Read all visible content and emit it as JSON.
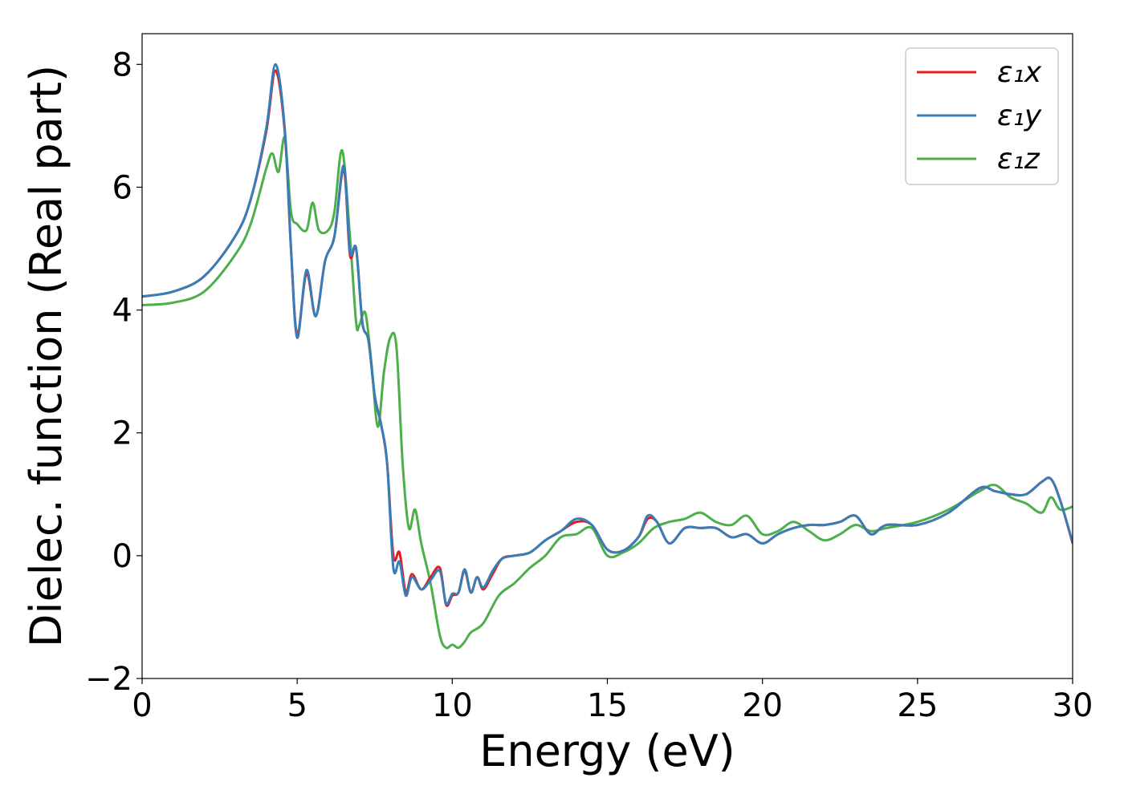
{
  "chart_data": {
    "type": "line",
    "xlabel": "Energy (eV)",
    "ylabel": "Dielec. function (Real part)",
    "xlim": [
      0,
      30
    ],
    "ylim": [
      -2,
      8.5
    ],
    "xticks": [
      0,
      5,
      10,
      15,
      20,
      25,
      30
    ],
    "xtick_labels": [
      "0",
      "5",
      "10",
      "15",
      "20",
      "25",
      "30"
    ],
    "yticks": [
      -2,
      0,
      2,
      4,
      6,
      8
    ],
    "ytick_labels": [
      "−2",
      "0",
      "2",
      "4",
      "6",
      "8"
    ],
    "grid": false,
    "legend_position": "top-right",
    "series": [
      {
        "name": "ε₁x",
        "color": "#e41a1c",
        "x": [
          0,
          1,
          2,
          3,
          3.5,
          4,
          4.3,
          4.6,
          4.8,
          5.0,
          5.3,
          5.6,
          5.9,
          6.2,
          6.5,
          6.7,
          6.9,
          7.1,
          7.3,
          7.5,
          7.7,
          7.9,
          8.1,
          8.3,
          8.5,
          8.7,
          9.0,
          9.3,
          9.6,
          9.8,
          10.0,
          10.2,
          10.4,
          10.6,
          10.8,
          11.0,
          11.3,
          11.6,
          12.0,
          12.5,
          13.0,
          13.5,
          14.0,
          14.5,
          15.0,
          15.5,
          16.0,
          16.3,
          16.6,
          17.0,
          17.5,
          18.0,
          18.5,
          19.0,
          19.5,
          20.0,
          20.5,
          21.0,
          21.5,
          22.0,
          22.5,
          23.0,
          23.5,
          24.0,
          25.0,
          26.0,
          27.0,
          27.5,
          28.0,
          28.5,
          29.0,
          29.3,
          29.6,
          30.0
        ],
        "values": [
          4.22,
          4.3,
          4.55,
          5.2,
          5.8,
          6.9,
          7.9,
          6.9,
          5.0,
          3.6,
          4.6,
          3.9,
          4.8,
          5.2,
          6.3,
          4.9,
          5.0,
          3.8,
          3.5,
          2.6,
          2.15,
          1.5,
          0.0,
          0.05,
          -0.6,
          -0.3,
          -0.55,
          -0.35,
          -0.2,
          -0.8,
          -0.65,
          -0.6,
          -0.25,
          -0.6,
          -0.35,
          -0.55,
          -0.3,
          -0.05,
          0.0,
          0.05,
          0.25,
          0.4,
          0.55,
          0.5,
          0.1,
          0.08,
          0.3,
          0.6,
          0.55,
          0.2,
          0.45,
          0.45,
          0.45,
          0.3,
          0.35,
          0.2,
          0.35,
          0.45,
          0.5,
          0.5,
          0.55,
          0.65,
          0.35,
          0.5,
          0.5,
          0.7,
          1.1,
          1.05,
          1.0,
          1.0,
          1.2,
          1.25,
          0.9,
          0.2
        ]
      },
      {
        "name": "ε₁y",
        "color": "#377eb8",
        "x": [
          0,
          1,
          2,
          3,
          3.5,
          4,
          4.3,
          4.6,
          4.8,
          5.0,
          5.3,
          5.6,
          5.9,
          6.2,
          6.5,
          6.7,
          6.9,
          7.1,
          7.3,
          7.5,
          7.7,
          7.9,
          8.1,
          8.3,
          8.5,
          8.7,
          9.0,
          9.3,
          9.6,
          9.8,
          10.0,
          10.2,
          10.4,
          10.6,
          10.8,
          11.0,
          11.3,
          11.6,
          12.0,
          12.5,
          13.0,
          13.5,
          14.0,
          14.5,
          15.0,
          15.5,
          16.0,
          16.3,
          16.6,
          17.0,
          17.5,
          18.0,
          18.5,
          19.0,
          19.5,
          20.0,
          20.5,
          21.0,
          21.5,
          22.0,
          22.5,
          23.0,
          23.5,
          24.0,
          25.0,
          26.0,
          27.0,
          27.5,
          28.0,
          28.5,
          29.0,
          29.3,
          29.6,
          30.0
        ],
        "values": [
          4.22,
          4.3,
          4.55,
          5.2,
          5.8,
          6.95,
          8.0,
          6.95,
          5.0,
          3.55,
          4.65,
          3.9,
          4.8,
          5.2,
          6.35,
          4.95,
          5.0,
          3.8,
          3.5,
          2.6,
          2.15,
          1.5,
          -0.2,
          -0.1,
          -0.65,
          -0.35,
          -0.55,
          -0.4,
          -0.25,
          -0.78,
          -0.62,
          -0.6,
          -0.22,
          -0.6,
          -0.35,
          -0.52,
          -0.25,
          -0.05,
          0.0,
          0.05,
          0.25,
          0.4,
          0.6,
          0.5,
          0.1,
          0.08,
          0.3,
          0.65,
          0.55,
          0.2,
          0.45,
          0.45,
          0.45,
          0.3,
          0.35,
          0.2,
          0.35,
          0.45,
          0.5,
          0.5,
          0.55,
          0.65,
          0.35,
          0.5,
          0.5,
          0.7,
          1.1,
          1.05,
          1.0,
          1.0,
          1.2,
          1.25,
          0.9,
          0.22
        ]
      },
      {
        "name": "ε₁z",
        "color": "#4daf4a",
        "x": [
          0,
          1,
          2,
          3,
          3.5,
          4,
          4.2,
          4.4,
          4.6,
          4.8,
          5.0,
          5.3,
          5.5,
          5.7,
          6.0,
          6.2,
          6.45,
          6.7,
          6.9,
          7.0,
          7.2,
          7.4,
          7.6,
          7.8,
          8.0,
          8.2,
          8.4,
          8.6,
          8.8,
          9.0,
          9.3,
          9.6,
          9.8,
          10.0,
          10.2,
          10.4,
          10.6,
          11.0,
          11.5,
          12.0,
          12.5,
          13.0,
          13.5,
          14.0,
          14.5,
          15.0,
          15.5,
          16.0,
          16.5,
          17.0,
          17.5,
          18.0,
          18.5,
          19.0,
          19.5,
          20.0,
          20.5,
          21.0,
          21.5,
          22.0,
          22.5,
          23.0,
          23.5,
          24.0,
          25.0,
          26.0,
          27.0,
          27.5,
          28.0,
          28.5,
          29.0,
          29.3,
          29.6,
          30.0
        ],
        "values": [
          4.08,
          4.12,
          4.3,
          4.9,
          5.4,
          6.3,
          6.55,
          6.25,
          6.8,
          5.6,
          5.4,
          5.3,
          5.75,
          5.3,
          5.3,
          5.6,
          6.6,
          5.2,
          3.8,
          3.75,
          3.95,
          3.1,
          2.1,
          3.0,
          3.55,
          3.4,
          1.5,
          0.45,
          0.75,
          0.2,
          -0.45,
          -1.3,
          -1.5,
          -1.45,
          -1.5,
          -1.4,
          -1.25,
          -1.1,
          -0.65,
          -0.45,
          -0.2,
          0.0,
          0.3,
          0.35,
          0.45,
          0.0,
          0.05,
          0.2,
          0.45,
          0.55,
          0.6,
          0.7,
          0.55,
          0.5,
          0.65,
          0.35,
          0.4,
          0.55,
          0.4,
          0.25,
          0.35,
          0.5,
          0.4,
          0.45,
          0.55,
          0.75,
          1.05,
          1.15,
          0.95,
          0.85,
          0.7,
          0.95,
          0.75,
          0.8
        ]
      }
    ]
  }
}
